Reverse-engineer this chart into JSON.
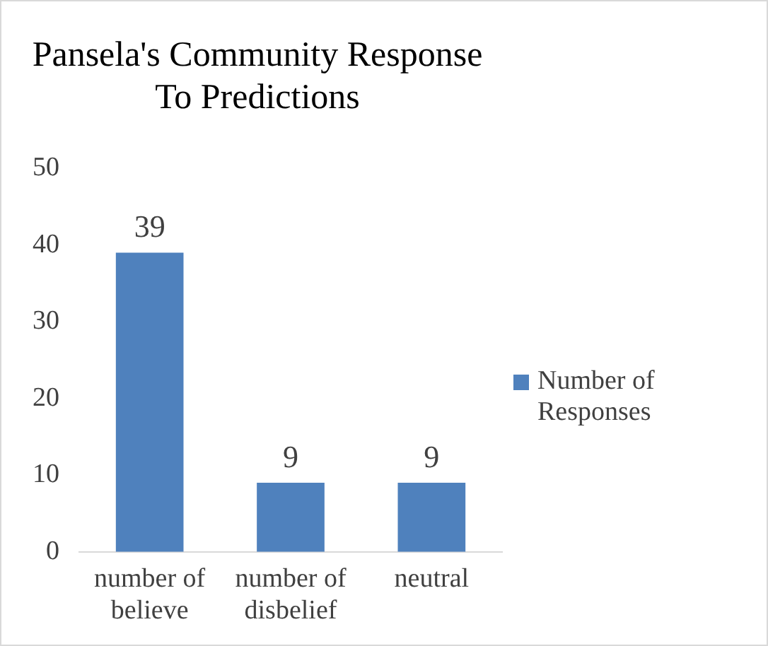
{
  "chart_data": {
    "type": "bar",
    "title": "Pansela's Community Response To Predictions",
    "categories": [
      "number of believe",
      "number of disbelief",
      "neutral"
    ],
    "series": [
      {
        "name": "Number of Responses",
        "color": "#4f81bd",
        "values": [
          39,
          9,
          9
        ]
      }
    ],
    "ylim": [
      0,
      50
    ],
    "yticks": [
      0,
      10,
      20,
      30,
      40,
      50
    ],
    "grid": false,
    "legend": "right",
    "data_labels": true
  }
}
